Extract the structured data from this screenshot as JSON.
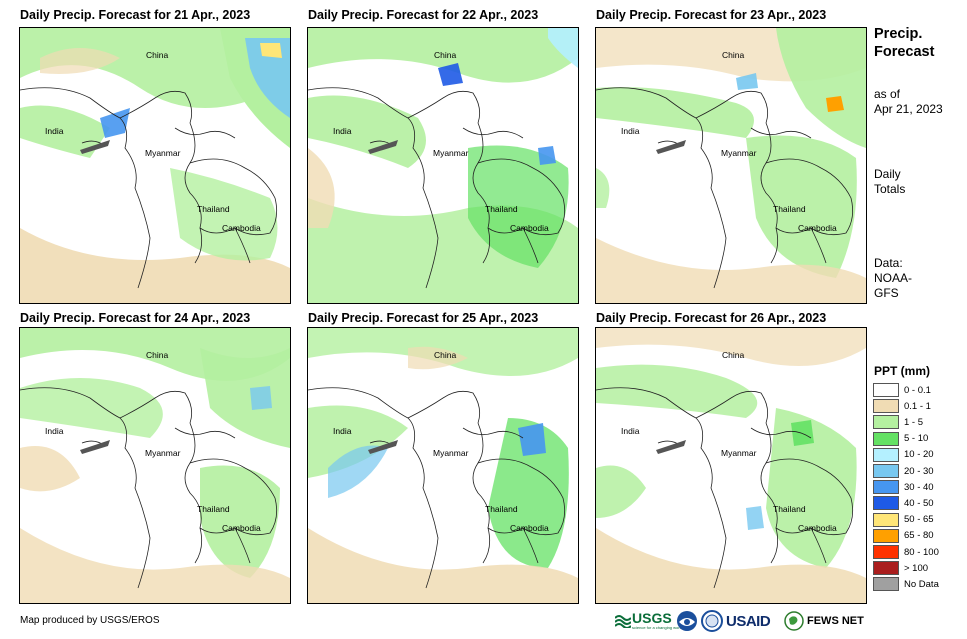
{
  "panels": [
    {
      "title": "Daily Precip. Forecast for 21 Apr., 2023",
      "labels": {
        "china": "China",
        "india": "India",
        "myanmar": "Myanmar",
        "thailand": "Thailand",
        "cambodia": "Cambodia"
      }
    },
    {
      "title": "Daily Precip. Forecast for 22 Apr., 2023",
      "labels": {
        "china": "China",
        "india": "India",
        "myanmar": "Myanmar",
        "thailand": "Thailand",
        "cambodia": "Cambodia"
      }
    },
    {
      "title": "Daily Precip. Forecast for 23 Apr., 2023",
      "labels": {
        "china": "China",
        "india": "India",
        "myanmar": "Myanmar",
        "thailand": "Thailand",
        "cambodia": "Cambodia"
      }
    },
    {
      "title": "Daily Precip. Forecast for 24 Apr., 2023",
      "labels": {
        "china": "China",
        "india": "India",
        "myanmar": "Myanmar",
        "thailand": "Thailand",
        "cambodia": "Cambodia"
      }
    },
    {
      "title": "Daily Precip. Forecast for 25 Apr., 2023",
      "labels": {
        "china": "China",
        "india": "India",
        "myanmar": "Myanmar",
        "thailand": "Thailand",
        "cambodia": "Cambodia"
      }
    },
    {
      "title": "Daily Precip. Forecast for 26 Apr., 2023",
      "labels": {
        "china": "China",
        "india": "India",
        "myanmar": "Myanmar",
        "thailand": "Thailand",
        "cambodia": "Cambodia"
      }
    }
  ],
  "sidebar": {
    "title_line1": "Precip.",
    "title_line2": "Forecast",
    "asof_line1": "as of",
    "asof_line2": "Apr 21, 2023",
    "daily_line1": "Daily",
    "daily_line2": "Totals",
    "data_line1": "Data:",
    "data_line2": "NOAA-",
    "data_line3": "GFS"
  },
  "legend": {
    "title": "PPT (mm)",
    "items": [
      {
        "label": "0 - 0.1",
        "color": "#ffffff"
      },
      {
        "label": "0.1 - 1",
        "color": "#f0dcb4"
      },
      {
        "label": "1 - 5",
        "color": "#b4f0a0"
      },
      {
        "label": "5 - 10",
        "color": "#64e164"
      },
      {
        "label": "10 - 20",
        "color": "#b4f0ff"
      },
      {
        "label": "20 - 30",
        "color": "#78c8f0"
      },
      {
        "label": "30 - 40",
        "color": "#4696f0"
      },
      {
        "label": "40 - 50",
        "color": "#1e5ae6"
      },
      {
        "label": "50 - 65",
        "color": "#ffe678"
      },
      {
        "label": "65 - 80",
        "color": "#ffa000"
      },
      {
        "label": "80 - 100",
        "color": "#ff3200"
      },
      {
        "label": "> 100",
        "color": "#aa1e1e"
      },
      {
        "label": "No Data",
        "color": "#a0a0a0"
      }
    ]
  },
  "footer": {
    "credit": "Map produced by USGS/EROS",
    "logos": {
      "usgs": "USGS",
      "usgs_tagline": "science for a changing world",
      "usaid": "USAID",
      "fewsnet": "FEWS NET"
    }
  }
}
